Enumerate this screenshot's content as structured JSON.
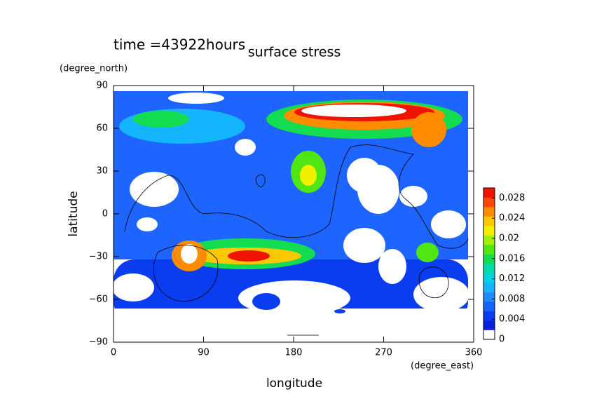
{
  "chart_data": {
    "type": "contour",
    "title": "surface stress",
    "subtitle": "time =43922hours",
    "x_label": "longitude",
    "x_unit": "(degree_east)",
    "y_label": "latitude",
    "y_unit": "(degree_north)",
    "xlim": [
      0,
      360
    ],
    "xticks": [
      0,
      90,
      180,
      270,
      360
    ],
    "ylim": [
      -90,
      90
    ],
    "yticks": [
      {
        "value": -90,
        "label": "−90"
      },
      {
        "value": -60,
        "label": "−60"
      },
      {
        "value": -30,
        "label": "−30"
      },
      0,
      30,
      60,
      90
    ],
    "clim": [
      0,
      0.03
    ],
    "cticks": [
      0,
      0.004,
      0.008,
      0.012,
      0.016,
      0.02,
      0.024,
      0.028
    ],
    "colors": [
      "#ffffff",
      "#0a1ee0",
      "#0a3cf0",
      "#1464ff",
      "#1e8cff",
      "#14b4ff",
      "#00d2e6",
      "#00dcaa",
      "#14dc50",
      "#50e614",
      "#a0f000",
      "#f0f000",
      "#ffc800",
      "#ff8c00",
      "#ff4600",
      "#f01400"
    ]
  }
}
